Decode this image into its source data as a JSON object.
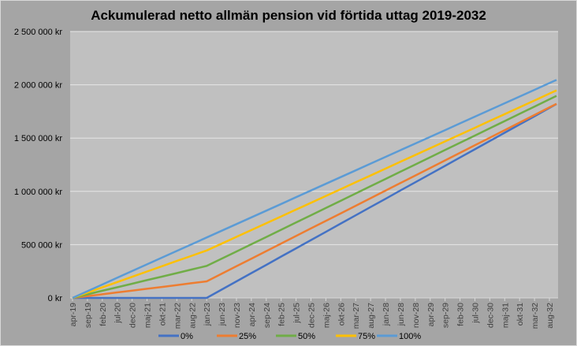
{
  "chart_data": {
    "type": "line",
    "title": "Ackumulerad netto allmän pension vid förtida uttag 2019-2032",
    "xlabel": "",
    "ylabel": "",
    "ylim": [
      0,
      2500000
    ],
    "yticks": [
      0,
      500000,
      1000000,
      1500000,
      2000000,
      2500000
    ],
    "ytick_labels": [
      "0 kr",
      "500 000 kr",
      "1 000 000 kr",
      "1 500 000 kr",
      "2 000 000 kr",
      "2 500 000 kr"
    ],
    "grid": "horizontal",
    "legend_position": "bottom",
    "value_scale": 1000,
    "x": [
      "apr-19",
      "sep-19",
      "feb-20",
      "jul-20",
      "dec-20",
      "maj-21",
      "okt-21",
      "mar-22",
      "aug-22",
      "jan-23",
      "jun-23",
      "nov-23",
      "apr-24",
      "sep-24",
      "feb-25",
      "jul-25",
      "dec-25",
      "maj-26",
      "okt-26",
      "mar-27",
      "aug-27",
      "jan-28",
      "jun-28",
      "nov-28",
      "apr-29",
      "sep-29",
      "feb-30",
      "jul-30",
      "dec-30",
      "maj-31",
      "okt-31",
      "mar-32",
      "aug-32"
    ],
    "series": [
      {
        "name": "0%",
        "color": "#4472c4",
        "values": [
          0,
          0,
          0,
          0,
          0,
          0,
          0,
          0,
          0,
          0,
          78,
          155,
          233,
          310,
          388,
          465,
          543,
          620,
          698,
          775,
          853,
          930,
          1008,
          1085,
          1163,
          1240,
          1318,
          1395,
          1473,
          1550,
          1628,
          1705,
          1783
        ]
      },
      {
        "name": "25%",
        "color": "#ed7d31",
        "values": [
          0,
          17,
          34,
          52,
          69,
          86,
          103,
          120,
          138,
          155,
          226,
          297,
          368,
          439,
          510,
          581,
          652,
          723,
          794,
          865,
          936,
          1007,
          1078,
          1149,
          1220,
          1291,
          1362,
          1433,
          1504,
          1575,
          1646,
          1717,
          1788
        ]
      },
      {
        "name": "50%",
        "color": "#70ad47",
        "values": [
          0,
          33,
          67,
          100,
          133,
          167,
          200,
          233,
          267,
          300,
          368,
          436,
          504,
          572,
          640,
          708,
          776,
          844,
          912,
          980,
          1048,
          1116,
          1184,
          1252,
          1320,
          1388,
          1456,
          1524,
          1592,
          1660,
          1728,
          1796,
          1864
        ]
      },
      {
        "name": "75%",
        "color": "#ffc000",
        "values": [
          0,
          50,
          99,
          149,
          198,
          248,
          297,
          347,
          396,
          445,
          509,
          573,
          637,
          701,
          765,
          829,
          893,
          957,
          1021,
          1085,
          1149,
          1213,
          1277,
          1341,
          1405,
          1469,
          1533,
          1597,
          1661,
          1725,
          1789,
          1853,
          1917
        ]
      },
      {
        "name": "100%",
        "color": "#5b9bd5",
        "values": [
          0,
          63,
          126,
          189,
          252,
          315,
          378,
          441,
          504,
          567,
          630,
          693,
          756,
          819,
          882,
          945,
          1008,
          1071,
          1134,
          1197,
          1260,
          1323,
          1386,
          1449,
          1512,
          1575,
          1638,
          1701,
          1764,
          1827,
          1890,
          1953,
          2016
        ]
      }
    ]
  }
}
